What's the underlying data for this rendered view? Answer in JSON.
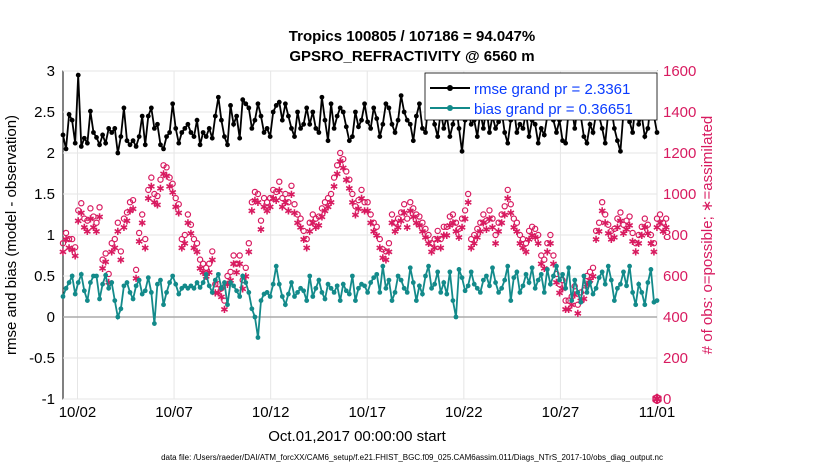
{
  "chart_data": {
    "type": "line",
    "title_line1": "Tropics 100805 / 107186 = 94.047%",
    "title_line2": "GPSRO_REFRACTIVITY @ 6560 m",
    "ylabel_left": "rmse and bias (model - observation)",
    "ylabel_right": "# of obs: o=possible; ∗=assimilated",
    "xlabel": "Oct.01,2017 00:00:00 start",
    "footer": "data file: /Users/raeder/DAI/ATM_forcXX/CAM6_setup/f.e21.FHIST_BGC.f09_025.CAM6assim.011/Diags_NTrS_2017-10/obs_diag_output.nc",
    "ylim_left": [
      -1,
      3
    ],
    "ylim_right": [
      0,
      1600
    ],
    "xlim_days": [
      0.25,
      31.0
    ],
    "left_ticks": [
      "-1",
      "-0.5",
      "0",
      "0.5",
      "1",
      "1.5",
      "2",
      "2.5",
      "3"
    ],
    "left_tick_values": [
      -1,
      -0.5,
      0,
      0.5,
      1,
      1.5,
      2,
      2.5,
      3
    ],
    "right_ticks": [
      "0",
      "200",
      "400",
      "600",
      "800",
      "1000",
      "1200",
      "1400",
      "1600"
    ],
    "right_tick_values": [
      0,
      200,
      400,
      600,
      800,
      1000,
      1200,
      1400,
      1600
    ],
    "x_ticks": [
      "10/02",
      "10/07",
      "10/12",
      "10/17",
      "10/22",
      "10/27",
      "11/01"
    ],
    "x_tick_days": [
      1,
      6,
      11,
      16,
      21,
      26,
      31
    ],
    "legend": [
      {
        "name": "rmse grand pr = 2.3361",
        "color": "#000000"
      },
      {
        "name": "bias grand pr = 0.36651",
        "color": "#138a8a"
      }
    ],
    "colors": {
      "rmse": "#000000",
      "bias": "#138a8a",
      "obs": "#d81b60",
      "zero_line": "#aaaaaa"
    },
    "series": [
      {
        "name": "rmse",
        "values": [
          2.22,
          2.05,
          2.47,
          2.4,
          2.12,
          2.95,
          2.08,
          2.18,
          2.12,
          2.51,
          2.25,
          2.19,
          2.1,
          2.22,
          2.12,
          2.3,
          2.25,
          2.3,
          2.0,
          2.2,
          2.55,
          2.15,
          2.1,
          2.15,
          2.08,
          2.2,
          2.45,
          2.1,
          2.45,
          2.55,
          2.3,
          2.35,
          2.1,
          2.05,
          2.2,
          2.25,
          2.6,
          2.3,
          2.12,
          2.25,
          2.3,
          2.35,
          2.25,
          2.2,
          2.4,
          2.1,
          2.25,
          2.2,
          2.3,
          2.18,
          2.45,
          2.68,
          2.4,
          2.2,
          2.1,
          2.58,
          2.35,
          2.45,
          2.18,
          2.65,
          2.6,
          2.55,
          2.3,
          2.4,
          2.6,
          2.45,
          2.25,
          2.3,
          2.2,
          2.5,
          2.58,
          2.62,
          2.4,
          2.6,
          2.45,
          2.3,
          2.2,
          2.5,
          2.3,
          2.35,
          2.55,
          2.35,
          2.5,
          2.3,
          2.25,
          2.68,
          2.4,
          2.15,
          2.6,
          2.3,
          2.45,
          2.55,
          2.5,
          2.32,
          2.15,
          2.2,
          2.5,
          2.32,
          2.4,
          2.6,
          2.38,
          2.3,
          2.55,
          2.42,
          2.2,
          2.35,
          2.6,
          2.55,
          2.35,
          2.25,
          2.4,
          2.7,
          2.5,
          2.4,
          2.35,
          2.15,
          2.45,
          2.6,
          2.3,
          2.25,
          2.62,
          2.55,
          2.35,
          2.2,
          2.5,
          2.3,
          2.45,
          2.2,
          2.35,
          2.6,
          2.3,
          2.02,
          2.4,
          2.55,
          2.35,
          2.4,
          2.2,
          2.5,
          2.3,
          2.55,
          2.25,
          2.45,
          2.3,
          2.38,
          2.52,
          2.25,
          2.12,
          2.4,
          2.55,
          2.25,
          2.35,
          2.3,
          2.5,
          2.2,
          2.4,
          2.35,
          2.12,
          2.3,
          2.22,
          2.45,
          2.62,
          2.4,
          2.25,
          2.4,
          2.15,
          2.12,
          2.52,
          2.55,
          2.3,
          2.58,
          2.45,
          2.2,
          2.12,
          2.35,
          2.25,
          2.48,
          2.45,
          2.3,
          2.12,
          2.5,
          2.55,
          2.3,
          2.15,
          2.02,
          2.5,
          2.45,
          2.38,
          2.25,
          2.62,
          2.35,
          2.45,
          2.2,
          2.3,
          2.62,
          2.45,
          2.25
        ]
      },
      {
        "name": "bias",
        "values": [
          0.25,
          0.35,
          0.42,
          0.5,
          0.28,
          0.42,
          0.52,
          0.32,
          0.2,
          0.42,
          0.5,
          0.5,
          0.22,
          0.4,
          0.51,
          0.35,
          0.42,
          0.2,
          0.0,
          0.1,
          0.38,
          0.42,
          0.3,
          0.22,
          0.38,
          0.45,
          0.28,
          0.32,
          0.48,
          0.3,
          -0.08,
          0.4,
          0.45,
          0.15,
          0.3,
          0.42,
          0.5,
          0.4,
          0.28,
          0.35,
          0.38,
          0.35,
          0.38,
          0.35,
          0.42,
          0.36,
          0.42,
          0.52,
          0.38,
          0.3,
          0.45,
          0.52,
          0.35,
          0.42,
          0.15,
          0.42,
          0.38,
          0.32,
          0.25,
          0.5,
          0.42,
          0.3,
          0.1,
          0.0,
          -0.25,
          0.2,
          0.28,
          0.3,
          0.25,
          0.4,
          0.62,
          0.4,
          0.25,
          0.15,
          0.28,
          0.42,
          0.25,
          0.3,
          0.35,
          0.32,
          0.2,
          0.5,
          0.25,
          0.35,
          0.45,
          0.3,
          0.22,
          0.4,
          0.35,
          0.3,
          0.38,
          0.2,
          0.4,
          0.32,
          0.28,
          0.5,
          0.2,
          0.35,
          0.4,
          0.38,
          0.3,
          0.42,
          0.48,
          0.52,
          0.3,
          0.62,
          0.35,
          0.45,
          0.2,
          0.3,
          0.5,
          0.45,
          0.35,
          0.3,
          0.6,
          0.42,
          0.2,
          0.38,
          0.28,
          0.5,
          0.62,
          0.35,
          0.4,
          0.55,
          0.3,
          0.42,
          0.28,
          0.55,
          0.2,
          0.0,
          0.58,
          0.48,
          0.32,
          0.38,
          0.55,
          0.4,
          0.35,
          0.3,
          0.45,
          0.5,
          0.38,
          0.6,
          0.42,
          0.3,
          0.35,
          0.45,
          0.62,
          0.2,
          0.48,
          0.55,
          0.3,
          0.38,
          0.52,
          0.42,
          0.6,
          0.35,
          0.45,
          0.52,
          0.3,
          0.58,
          0.4,
          0.5,
          0.62,
          0.45,
          0.52,
          0.35,
          0.6,
          0.2,
          0.45,
          0.3,
          0.18,
          0.5,
          0.3,
          0.42,
          0.28,
          0.35,
          0.48,
          0.55,
          0.4,
          0.62,
          0.45,
          0.2,
          0.35,
          0.4,
          0.55,
          0.38,
          0.62,
          0.3,
          0.15,
          0.4,
          0.3,
          0.15,
          0.42,
          0.58,
          0.18,
          0.2
        ]
      },
      {
        "name": "possible",
        "values": [
          760,
          810,
          780,
          780,
          740,
          920,
          955,
          880,
          870,
          930,
          890,
          860,
          935,
          680,
          710,
          610,
          760,
          780,
          860,
          720,
          880,
          910,
          960,
          970,
          630,
          810,
          900,
          780,
          1020,
          1080,
          1000,
          990,
          1070,
          1140,
          1130,
          1080,
          1050,
          980,
          950,
          780,
          800,
          900,
          850,
          780,
          760,
          680,
          660,
          640,
          660,
          720,
          560,
          560,
          540,
          480,
          600,
          620,
          700,
          660,
          700,
          580,
          640,
          760,
          960,
          1010,
          1000,
          870,
          980,
          960,
          980,
          1020,
          1010,
          1060,
          980,
          1000,
          960,
          1040,
          950,
          900,
          880,
          820,
          780,
          860,
          900,
          880,
          890,
          930,
          960,
          980,
          1000,
          1080,
          1140,
          1200,
          1170,
          1110,
          1070,
          1000,
          940,
          970,
          1020,
          960,
          960,
          900,
          860,
          840,
          780,
          730,
          720,
          760,
          900,
          860,
          880,
          910,
          950,
          880,
          960,
          930,
          900,
          890,
          860,
          830,
          800,
          760,
          780,
          820,
          780,
          840,
          840,
          890,
          900,
          860,
          830,
          880,
          920,
          1000,
          780,
          800,
          830,
          860,
          900,
          870,
          920,
          880,
          800,
          860,
          900,
          940,
          1020,
          950,
          880,
          860,
          800,
          780,
          760,
          820,
          840,
          830,
          800,
          700,
          680,
          760,
          800,
          700,
          610,
          560,
          580,
          480,
          480,
          500,
          550,
          460,
          520,
          530,
          600,
          620,
          640,
          820,
          860,
          960,
          900,
          850,
          820,
          830,
          880,
          910,
          850,
          870,
          890,
          810,
          760,
          800,
          840,
          880,
          850,
          800,
          760,
          880,
          900,
          860,
          880
        ]
      },
      {
        "name": "assimilated",
        "values": [
          720,
          780,
          740,
          730,
          700,
          870,
          910,
          840,
          820,
          880,
          840,
          820,
          890,
          640,
          670,
          570,
          720,
          740,
          820,
          680,
          840,
          870,
          920,
          930,
          590,
          770,
          860,
          740,
          980,
          1040,
          960,
          950,
          1030,
          1100,
          1090,
          1040,
          1010,
          940,
          910,
          740,
          760,
          860,
          810,
          740,
          720,
          640,
          620,
          600,
          620,
          680,
          520,
          520,
          500,
          440,
          560,
          580,
          660,
          620,
          660,
          540,
          600,
          720,
          920,
          970,
          960,
          830,
          940,
          920,
          940,
          980,
          970,
          1020,
          940,
          960,
          920,
          1000,
          910,
          860,
          840,
          780,
          740,
          820,
          860,
          840,
          850,
          890,
          920,
          940,
          960,
          1040,
          1100,
          1160,
          1130,
          1070,
          1030,
          960,
          900,
          930,
          980,
          920,
          920,
          860,
          820,
          800,
          740,
          690,
          680,
          720,
          860,
          820,
          840,
          870,
          910,
          840,
          920,
          890,
          860,
          850,
          820,
          790,
          760,
          720,
          740,
          780,
          740,
          800,
          800,
          850,
          860,
          820,
          790,
          840,
          880,
          960,
          740,
          760,
          790,
          820,
          860,
          830,
          880,
          840,
          760,
          820,
          860,
          900,
          980,
          910,
          840,
          820,
          760,
          740,
          720,
          780,
          800,
          790,
          760,
          660,
          640,
          720,
          760,
          660,
          570,
          520,
          540,
          440,
          440,
          460,
          510,
          420,
          480,
          490,
          560,
          580,
          600,
          780,
          820,
          920,
          860,
          810,
          780,
          790,
          840,
          870,
          810,
          830,
          850,
          770,
          720,
          760,
          800,
          840,
          810,
          760,
          720,
          840,
          860,
          820,
          840
        ]
      }
    ]
  }
}
